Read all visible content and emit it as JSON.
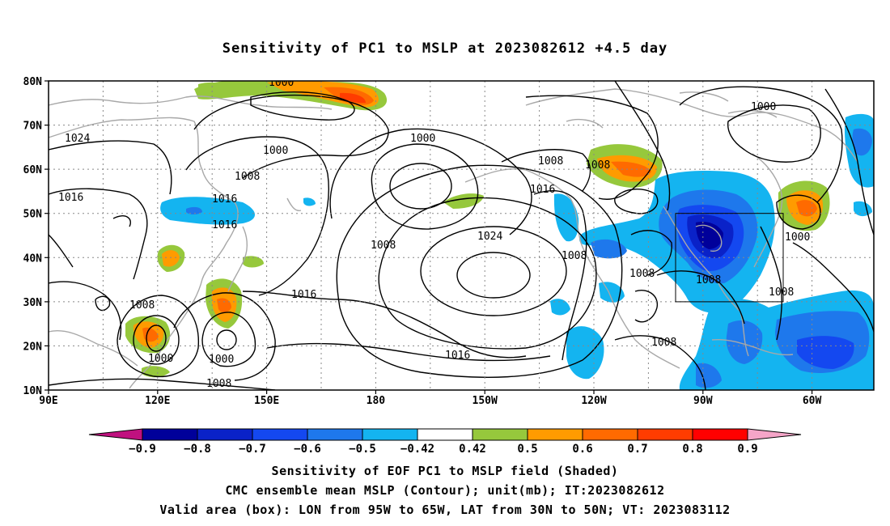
{
  "title": "Sensitivity of PC1 to MSLP at 2023082612 +4.5 day",
  "map": {
    "lat_ticks": [
      "80N",
      "70N",
      "60N",
      "50N",
      "40N",
      "30N",
      "20N",
      "10N"
    ],
    "lon_ticks": [
      "90E",
      "120E",
      "150E",
      "180",
      "150W",
      "120W",
      "90W",
      "60W"
    ],
    "contour_labels": [
      "1000",
      "1024",
      "1000",
      "1000",
      "1000",
      "1008",
      "1008",
      "1008",
      "1016",
      "1016",
      "1016",
      "1016",
      "1024",
      "1008",
      "1008",
      "1008",
      "1016",
      "1008",
      "1008",
      "1000",
      "1008",
      "1000",
      "1008",
      "1016",
      "1008"
    ],
    "valid_box": {
      "lon_west": -95,
      "lon_east": -65,
      "lat_south": 30,
      "lat_north": 50
    }
  },
  "colorbar": {
    "colors": [
      "#c0117f",
      "#00009a",
      "#0a22c8",
      "#1448f0",
      "#1e78ec",
      "#14b4f0",
      "#ffffff",
      "#96c83c",
      "#ff9b00",
      "#ff6a00",
      "#ff3c00",
      "#ff0000",
      "#f5a5c8"
    ],
    "labels": [
      "−0.9",
      "−0.8",
      "−0.7",
      "−0.6",
      "−0.5",
      "−0.42",
      "0.42",
      "0.5",
      "0.6",
      "0.7",
      "0.8",
      "0.9"
    ]
  },
  "captions": [
    "Sensitivity of EOF PC1 to MSLP field (Shaded)",
    "CMC ensemble mean MSLP (Contour); unit(mb); IT:2023082612",
    "Valid area (box): LON from 95W to 65W, LAT from 30N to 50N; VT: 2023083112"
  ]
}
